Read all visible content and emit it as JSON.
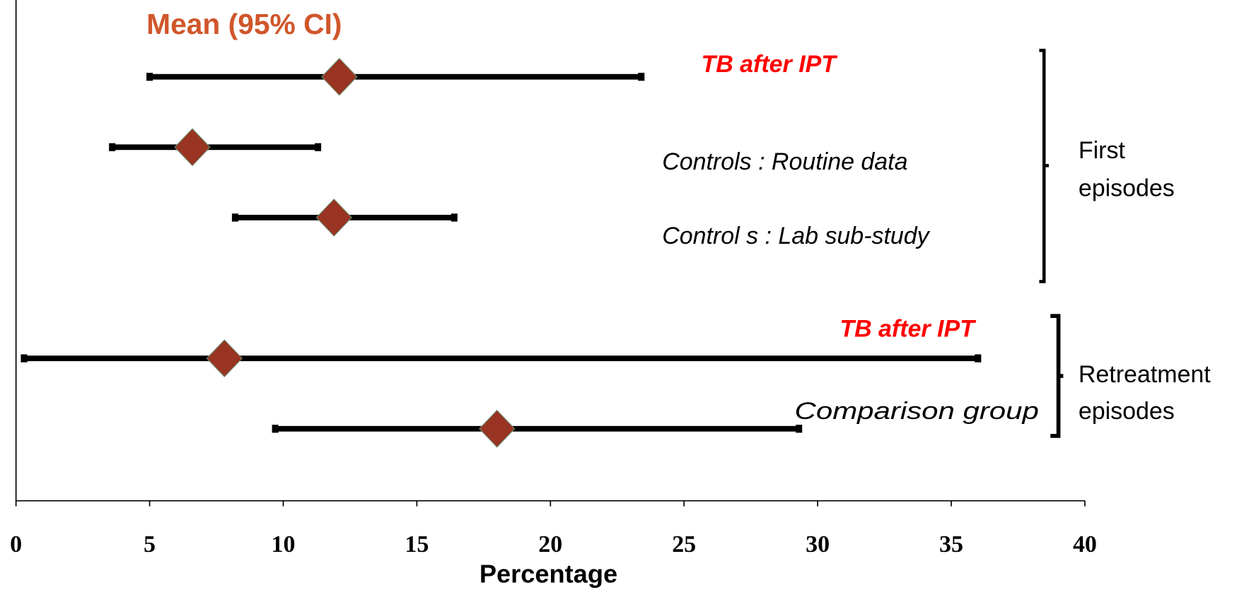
{
  "chart_data": {
    "type": "forest",
    "title": "Mean (95% CI)",
    "title_color": "#d0562a",
    "xlabel": "Percentage",
    "xlim": [
      0,
      40
    ],
    "xticks": [
      0,
      5,
      10,
      15,
      20,
      25,
      30,
      35,
      40
    ],
    "values": [
      12.1,
      6.6,
      11.9,
      7.8,
      18.0
    ],
    "lower": [
      5.0,
      3.6,
      8.2,
      0.3,
      9.7
    ],
    "upper": [
      23.4,
      11.3,
      16.4,
      36.0,
      29.3
    ],
    "marker_color": "#993322",
    "line_color": "#000000",
    "annotations": [
      {
        "text": "TB after IPT",
        "color": "#ff0000"
      },
      {
        "text": "Controls : Routine data",
        "color": "#000000"
      },
      {
        "text": "Control s : Lab sub-study",
        "color": "#000000"
      },
      {
        "text": "TB after IPT",
        "color": "#ff0000"
      },
      {
        "text": "Comparison group",
        "color": "#000000"
      }
    ],
    "groups": [
      {
        "label": [
          "First",
          "episodes"
        ]
      },
      {
        "label": [
          "Retreatment",
          "episodes"
        ]
      }
    ]
  }
}
